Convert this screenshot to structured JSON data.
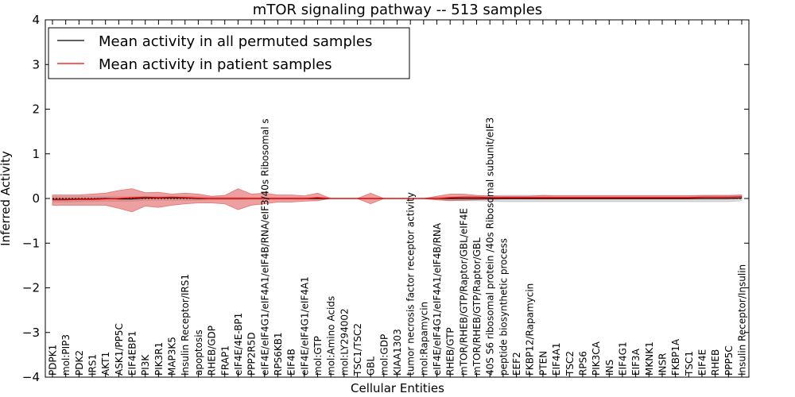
{
  "chart_data": {
    "type": "line",
    "title": "mTOR signaling pathway -- 513 samples",
    "xlabel": "Cellular Entities",
    "ylabel": "Inferred Activity",
    "ylim": [
      -4,
      4
    ],
    "yticks": [
      4,
      3,
      2,
      1,
      0,
      -1,
      -2,
      -3,
      -4
    ],
    "ytick_labels": [
      "4",
      "3",
      "2",
      "1",
      "0",
      "−1",
      "−2",
      "−3",
      "−4"
    ],
    "legend_position": "top-left",
    "categories": [
      "PDPK1",
      "mol:PIP3",
      "PDK2",
      "IRS1",
      "AKT1",
      "ASK1/PP5C",
      "EIF4EBP1",
      "PI3K",
      "PIK3R1",
      "MAP3K5",
      "Insulin Receptor/IRS1",
      "apoptosis",
      "RHEB/GDP",
      "FRAP1",
      "eIF4E/4E-BP1",
      "PPP2R5D",
      "eIF4E/eIF4G1/eIF4A1/eIF4B/RNA/eIF3/40s Ribosomal s",
      "RPS6KB1",
      "EIF4B",
      "eIF4E/eIF4G1/eIF4A1",
      "mol:GTP",
      "mol:Amino Acids",
      "mol:LY294002",
      "TSC1/TSC2",
      "GBL",
      "mol:GDP",
      "KIAA1303",
      "tumor necrosis factor receptor activity",
      "mol:Rapamycin",
      "eIF4E/eIF4G1/eIF4A1/eIF4B/RNA",
      "RHEB/GTP",
      "mTOR/RHEB/GTP/Raptor/GBL/eIF4E",
      "mTOR/RHEB/GTP/Raptor/GBL",
      "40S S6 ribosomal protein /40s Ribosomal subunit/eIF3",
      "peptide biosynthetic process",
      "EEF2",
      "FKBP12/Rapamycin",
      "PTEN",
      "EIF4A1",
      "TSC2",
      "RPS6",
      "PIK3CA",
      "INS",
      "EIF4G1",
      "EIF3A",
      "MKNK1",
      "INSR",
      "FKBP1A",
      "TSC1",
      "EIF4E",
      "RHEB",
      "PPP5C",
      "Insulin Receptor/Insulin"
    ],
    "series": [
      {
        "name": "Mean activity in all permuted samples",
        "color": "#000000",
        "values": [
          -0.02,
          -0.02,
          -0.01,
          -0.01,
          0.0,
          -0.01,
          -0.01,
          0.01,
          0.01,
          0.01,
          0.01,
          0.0,
          0.0,
          0.0,
          0.0,
          0.0,
          0.0,
          0.0,
          0.0,
          0.0,
          0.0,
          0.0,
          0.0,
          0.0,
          0.0,
          0.0,
          0.0,
          0.0,
          0.0,
          0.0,
          0.0,
          0.0,
          0.0,
          0.0,
          0.0,
          0.0,
          0.0,
          0.0,
          0.0,
          0.0,
          0.0,
          0.0,
          0.0,
          0.0,
          0.0,
          0.0,
          0.0,
          0.0,
          0.0,
          0.0,
          0.0,
          0.0,
          0.01
        ],
        "band_upper": [
          0.04,
          0.04,
          0.04,
          0.04,
          0.04,
          0.04,
          0.04,
          0.05,
          0.05,
          0.05,
          0.05,
          0.04,
          0.03,
          0.03,
          0.03,
          0.02,
          0.02,
          0.02,
          0.02,
          0.02,
          0.01,
          0.0,
          0.0,
          0.0,
          0.0,
          0.0,
          0.0,
          0.0,
          0.0,
          0.03,
          0.04,
          0.05,
          0.05,
          0.06,
          0.07,
          0.07,
          0.07,
          0.07,
          0.07,
          0.07,
          0.07,
          0.07,
          0.07,
          0.07,
          0.07,
          0.07,
          0.07,
          0.07,
          0.07,
          0.07,
          0.07,
          0.07,
          0.07
        ],
        "band_lower": [
          -0.08,
          -0.08,
          -0.07,
          -0.07,
          -0.06,
          -0.06,
          -0.06,
          -0.04,
          -0.04,
          -0.04,
          -0.04,
          -0.04,
          -0.03,
          -0.03,
          -0.03,
          -0.02,
          -0.02,
          -0.02,
          -0.02,
          -0.02,
          -0.01,
          0.0,
          0.0,
          0.0,
          0.0,
          0.0,
          0.0,
          0.0,
          0.0,
          -0.03,
          -0.04,
          -0.05,
          -0.05,
          -0.06,
          -0.07,
          -0.07,
          -0.07,
          -0.07,
          -0.07,
          -0.07,
          -0.07,
          -0.07,
          -0.07,
          -0.07,
          -0.07,
          -0.07,
          -0.07,
          -0.07,
          -0.07,
          -0.07,
          -0.07,
          -0.07,
          -0.05
        ],
        "band_color": "#bbbbbb"
      },
      {
        "name": "Mean activity in patient samples",
        "color": "#ff0000",
        "values": [
          -0.03,
          -0.03,
          -0.02,
          -0.02,
          -0.01,
          0.0,
          0.02,
          0.03,
          0.02,
          0.03,
          0.02,
          0.01,
          0.0,
          0.0,
          0.0,
          0.0,
          0.0,
          0.0,
          0.0,
          0.0,
          0.02,
          0.0,
          0.0,
          0.0,
          0.0,
          0.0,
          0.0,
          0.0,
          0.0,
          0.0,
          0.02,
          0.03,
          0.03,
          0.02,
          0.02,
          0.02,
          0.02,
          0.02,
          0.02,
          0.02,
          0.02,
          0.02,
          0.02,
          0.02,
          0.02,
          0.02,
          0.02,
          0.02,
          0.02,
          0.03,
          0.03,
          0.03,
          0.04
        ],
        "band_upper": [
          0.08,
          0.08,
          0.08,
          0.1,
          0.12,
          0.18,
          0.22,
          0.13,
          0.14,
          0.1,
          0.12,
          0.1,
          0.05,
          0.07,
          0.22,
          0.1,
          0.12,
          0.08,
          0.08,
          0.06,
          0.12,
          0.0,
          0.0,
          0.0,
          0.12,
          0.0,
          0.0,
          0.0,
          0.0,
          0.05,
          0.1,
          0.1,
          0.07,
          0.06,
          0.05,
          0.05,
          0.05,
          0.07,
          0.06,
          0.06,
          0.06,
          0.06,
          0.06,
          0.06,
          0.06,
          0.06,
          0.06,
          0.06,
          0.06,
          0.07,
          0.07,
          0.07,
          0.08
        ],
        "band_lower": [
          -0.15,
          -0.15,
          -0.15,
          -0.15,
          -0.15,
          -0.22,
          -0.3,
          -0.17,
          -0.2,
          -0.15,
          -0.12,
          -0.1,
          -0.1,
          -0.12,
          -0.25,
          -0.15,
          -0.12,
          -0.08,
          -0.08,
          -0.06,
          -0.05,
          0.0,
          0.0,
          0.0,
          -0.12,
          0.0,
          0.0,
          0.0,
          0.0,
          -0.03,
          -0.05,
          -0.04,
          -0.03,
          -0.02,
          -0.01,
          -0.01,
          -0.01,
          -0.01,
          -0.01,
          -0.01,
          -0.01,
          -0.01,
          -0.01,
          -0.01,
          -0.01,
          -0.01,
          -0.01,
          -0.01,
          -0.01,
          0.0,
          0.0,
          0.0,
          0.0
        ],
        "band_color": "#e06060"
      }
    ],
    "baseline": 0
  }
}
